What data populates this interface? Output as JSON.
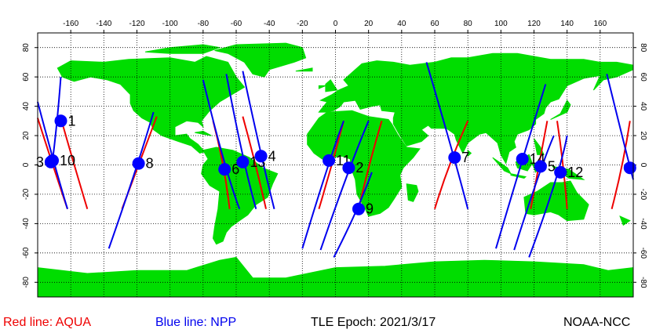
{
  "legend": {
    "aqua": "Red line: AQUA",
    "npp": "Blue line: NPP"
  },
  "epoch": "TLE Epoch: 2021/3/17",
  "credit": "NOAA-NCC",
  "colors": {
    "land": "#00dd00",
    "aqua_track": "#ee0000",
    "npp_track": "#0000ee",
    "marker": "#0000ff",
    "grid": "#000000"
  },
  "map": {
    "lon_ticks": [
      -160,
      -140,
      -120,
      -100,
      -80,
      -60,
      -40,
      -20,
      0,
      20,
      40,
      60,
      80,
      100,
      120,
      140,
      160
    ],
    "lat_ticks": [
      80,
      60,
      40,
      20,
      0,
      -20,
      -40,
      -60,
      -80
    ],
    "lat_labels_left": [
      "80",
      "60",
      "40",
      "20",
      "0",
      "-20",
      "-40",
      "-60",
      "-80"
    ],
    "lat_labels_right": [
      "80",
      "60",
      "40",
      "20",
      "0",
      "-20",
      "-40",
      "-60",
      "-80"
    ]
  },
  "markers": [
    {
      "label": "1",
      "lon": -166,
      "lat": 30
    },
    {
      "label": "3",
      "lon": -172,
      "lat": 2
    },
    {
      "label": "10",
      "lon": -171,
      "lat": 3
    },
    {
      "label": "8",
      "lon": -119,
      "lat": 1
    },
    {
      "label": "6",
      "lon": -67,
      "lat": -3
    },
    {
      "label": "13",
      "lon": -56,
      "lat": 2
    },
    {
      "label": "4",
      "lon": -45,
      "lat": 6
    },
    {
      "label": "11",
      "lon": -4,
      "lat": 3
    },
    {
      "label": "2",
      "lon": 8,
      "lat": -2
    },
    {
      "label": "9",
      "lon": 14,
      "lat": -30
    },
    {
      "label": "7",
      "lon": 72,
      "lat": 5
    },
    {
      "label": "14",
      "lon": 113,
      "lat": 4
    },
    {
      "label": "5",
      "lon": 124,
      "lat": -1
    },
    {
      "label": "12",
      "lon": 136,
      "lat": -5
    },
    {
      "label": "",
      "lon": 178,
      "lat": -2
    }
  ],
  "aqua_tracks": [
    [
      [
        -162,
        -30
      ],
      [
        -171,
        0
      ],
      [
        -180,
        32
      ]
    ],
    [
      [
        -150,
        -30
      ],
      [
        -158,
        0
      ],
      [
        -166,
        32
      ]
    ],
    [
      [
        -129,
        -30
      ],
      [
        -119,
        0
      ],
      [
        -108,
        33
      ]
    ],
    [
      [
        -64,
        -30
      ],
      [
        -67,
        0
      ],
      [
        -74,
        30
      ]
    ],
    [
      [
        -42,
        -30
      ],
      [
        -48,
        0
      ],
      [
        -56,
        33
      ]
    ],
    [
      [
        -10,
        -30
      ],
      [
        -2,
        0
      ],
      [
        5,
        30
      ]
    ],
    [
      [
        14,
        -30
      ],
      [
        20,
        0
      ],
      [
        28,
        30
      ]
    ],
    [
      [
        60,
        -30
      ],
      [
        68,
        0
      ],
      [
        80,
        30
      ]
    ],
    [
      [
        118,
        -30
      ],
      [
        123,
        0
      ],
      [
        128,
        30
      ]
    ],
    [
      [
        140,
        -30
      ],
      [
        138,
        0
      ],
      [
        134,
        30
      ]
    ],
    [
      [
        167,
        -30
      ],
      [
        174,
        0
      ],
      [
        178,
        30
      ]
    ]
  ],
  "npp_tracks": [
    [
      [
        -166,
        60
      ],
      [
        -168,
        30
      ],
      [
        -171,
        3
      ]
    ],
    [
      [
        -180,
        43
      ],
      [
        -170,
        0
      ],
      [
        -162,
        -30
      ]
    ],
    [
      [
        -137,
        -57
      ],
      [
        -119,
        1
      ],
      [
        -110,
        36
      ]
    ],
    [
      [
        -80,
        58
      ],
      [
        -67,
        -3
      ],
      [
        -58,
        -30
      ]
    ],
    [
      [
        -66,
        62
      ],
      [
        -56,
        2
      ],
      [
        -48,
        -30
      ]
    ],
    [
      [
        -56,
        64
      ],
      [
        -45,
        6
      ],
      [
        -37,
        -30
      ]
    ],
    [
      [
        -20,
        -57
      ],
      [
        -4,
        3
      ],
      [
        5,
        30
      ]
    ],
    [
      [
        -9,
        -58
      ],
      [
        8,
        -2
      ],
      [
        20,
        30
      ]
    ],
    [
      [
        -1,
        -63
      ],
      [
        14,
        -30
      ],
      [
        22,
        -5
      ]
    ],
    [
      [
        55,
        70
      ],
      [
        72,
        5
      ],
      [
        80,
        -30
      ]
    ],
    [
      [
        97,
        -57
      ],
      [
        113,
        4
      ],
      [
        127,
        55
      ]
    ],
    [
      [
        108,
        -58
      ],
      [
        124,
        -1
      ],
      [
        132,
        20
      ]
    ],
    [
      [
        117,
        -63
      ],
      [
        136,
        -5
      ],
      [
        140,
        20
      ]
    ],
    [
      [
        164,
        62
      ],
      [
        178,
        -2
      ],
      [
        180,
        -10
      ]
    ]
  ],
  "land": [
    [
      [
        -168,
        66
      ],
      [
        -160,
        71
      ],
      [
        -140,
        70
      ],
      [
        -125,
        72
      ],
      [
        -100,
        73
      ],
      [
        -85,
        70
      ],
      [
        -78,
        74
      ],
      [
        -65,
        70
      ],
      [
        -60,
        60
      ],
      [
        -55,
        53
      ],
      [
        -64,
        47
      ],
      [
        -70,
        43
      ],
      [
        -76,
        37
      ],
      [
        -81,
        30
      ],
      [
        -80,
        26
      ],
      [
        -83,
        29
      ],
      [
        -90,
        30
      ],
      [
        -97,
        26
      ],
      [
        -97,
        20
      ],
      [
        -90,
        21
      ],
      [
        -88,
        18
      ],
      [
        -83,
        14
      ],
      [
        -79,
        9
      ],
      [
        -82,
        8
      ],
      [
        -87,
        13
      ],
      [
        -95,
        16
      ],
      [
        -105,
        20
      ],
      [
        -110,
        24
      ],
      [
        -112,
        29
      ],
      [
        -117,
        32
      ],
      [
        -122,
        37
      ],
      [
        -124,
        42
      ],
      [
        -124,
        48
      ],
      [
        -130,
        55
      ],
      [
        -138,
        58
      ],
      [
        -148,
        60
      ],
      [
        -158,
        57
      ],
      [
        -165,
        60
      ],
      [
        -168,
        66
      ]
    ],
    [
      [
        -80,
        10
      ],
      [
        -72,
        12
      ],
      [
        -62,
        10
      ],
      [
        -52,
        5
      ],
      [
        -44,
        -2
      ],
      [
        -35,
        -6
      ],
      [
        -38,
        -13
      ],
      [
        -41,
        -22
      ],
      [
        -48,
        -27
      ],
      [
        -53,
        -34
      ],
      [
        -58,
        -38
      ],
      [
        -63,
        -42
      ],
      [
        -66,
        -46
      ],
      [
        -68,
        -52
      ],
      [
        -72,
        -54
      ],
      [
        -74,
        -50
      ],
      [
        -73,
        -42
      ],
      [
        -71,
        -30
      ],
      [
        -70,
        -18
      ],
      [
        -76,
        -14
      ],
      [
        -81,
        -6
      ],
      [
        -80,
        0
      ],
      [
        -77,
        4
      ],
      [
        -80,
        10
      ]
    ],
    [
      [
        -73,
        78
      ],
      [
        -60,
        82
      ],
      [
        -30,
        83
      ],
      [
        -20,
        80
      ],
      [
        -18,
        73
      ],
      [
        -25,
        70
      ],
      [
        -40,
        65
      ],
      [
        -43,
        60
      ],
      [
        -50,
        62
      ],
      [
        -55,
        70
      ],
      [
        -65,
        76
      ],
      [
        -73,
        78
      ]
    ],
    [
      [
        -100,
        80
      ],
      [
        -80,
        82
      ],
      [
        -70,
        80
      ],
      [
        -80,
        76
      ],
      [
        -100,
        76
      ],
      [
        -115,
        77
      ],
      [
        -100,
        80
      ]
    ],
    [
      [
        -10,
        36
      ],
      [
        -5,
        43
      ],
      [
        -9,
        44
      ],
      [
        -2,
        48
      ],
      [
        2,
        51
      ],
      [
        8,
        54
      ],
      [
        5,
        58
      ],
      [
        10,
        63
      ],
      [
        16,
        69
      ],
      [
        25,
        71
      ],
      [
        35,
        70
      ],
      [
        45,
        68
      ],
      [
        60,
        70
      ],
      [
        70,
        73
      ],
      [
        80,
        73
      ],
      [
        95,
        76
      ],
      [
        110,
        76
      ],
      [
        130,
        72
      ],
      [
        150,
        72
      ],
      [
        160,
        70
      ],
      [
        170,
        70
      ],
      [
        180,
        68
      ],
      [
        180,
        65
      ],
      [
        170,
        60
      ],
      [
        162,
        58
      ],
      [
        156,
        51
      ],
      [
        160,
        61
      ],
      [
        150,
        59
      ],
      [
        140,
        54
      ],
      [
        135,
        45
      ],
      [
        130,
        43
      ],
      [
        127,
        39
      ],
      [
        126,
        35
      ],
      [
        121,
        31
      ],
      [
        121,
        28
      ],
      [
        117,
        24
      ],
      [
        110,
        21
      ],
      [
        108,
        16
      ],
      [
        109,
        12
      ],
      [
        105,
        9
      ],
      [
        103,
        1
      ],
      [
        100,
        7
      ],
      [
        98,
        15
      ],
      [
        94,
        19
      ],
      [
        91,
        22
      ],
      [
        87,
        21
      ],
      [
        80,
        15
      ],
      [
        77,
        8
      ],
      [
        73,
        17
      ],
      [
        72,
        21
      ],
      [
        67,
        25
      ],
      [
        58,
        25
      ],
      [
        56,
        27
      ],
      [
        52,
        24
      ],
      [
        56,
        20
      ],
      [
        52,
        16
      ],
      [
        43,
        13
      ],
      [
        39,
        20
      ],
      [
        35,
        28
      ],
      [
        35,
        32
      ],
      [
        36,
        36
      ],
      [
        28,
        37
      ],
      [
        27,
        41
      ],
      [
        22,
        40
      ],
      [
        15,
        38
      ],
      [
        12,
        44
      ],
      [
        5,
        43
      ],
      [
        3,
        40
      ],
      [
        -1,
        37
      ],
      [
        -6,
        36
      ],
      [
        -10,
        36
      ]
    ],
    [
      [
        -17,
        21
      ],
      [
        -10,
        32
      ],
      [
        -5,
        36
      ],
      [
        10,
        37
      ],
      [
        20,
        33
      ],
      [
        32,
        31
      ],
      [
        34,
        28
      ],
      [
        38,
        20
      ],
      [
        43,
        12
      ],
      [
        51,
        11
      ],
      [
        47,
        5
      ],
      [
        41,
        -2
      ],
      [
        39,
        -7
      ],
      [
        40,
        -15
      ],
      [
        35,
        -24
      ],
      [
        32,
        -29
      ],
      [
        27,
        -33
      ],
      [
        20,
        -35
      ],
      [
        18,
        -30
      ],
      [
        13,
        -20
      ],
      [
        12,
        -10
      ],
      [
        9,
        -1
      ],
      [
        9,
        4
      ],
      [
        4,
        6
      ],
      [
        -8,
        4
      ],
      [
        -13,
        8
      ],
      [
        -17,
        14
      ],
      [
        -17,
        21
      ]
    ],
    [
      [
        43,
        -13
      ],
      [
        49,
        -14
      ],
      [
        50,
        -18
      ],
      [
        47,
        -25
      ],
      [
        44,
        -24
      ],
      [
        43,
        -13
      ]
    ],
    [
      [
        114,
        -22
      ],
      [
        122,
        -18
      ],
      [
        130,
        -12
      ],
      [
        137,
        -12
      ],
      [
        142,
        -11
      ],
      [
        146,
        -19
      ],
      [
        153,
        -27
      ],
      [
        150,
        -37
      ],
      [
        140,
        -38
      ],
      [
        135,
        -34
      ],
      [
        130,
        -32
      ],
      [
        120,
        -34
      ],
      [
        115,
        -33
      ],
      [
        114,
        -22
      ]
    ],
    [
      [
        95,
        5
      ],
      [
        104,
        -2
      ],
      [
        106,
        -6
      ],
      [
        102,
        -4
      ],
      [
        95,
        5
      ]
    ],
    [
      [
        106,
        -6
      ],
      [
        115,
        -8
      ],
      [
        114,
        -9
      ],
      [
        106,
        -7
      ],
      [
        106,
        -6
      ]
    ],
    [
      [
        109,
        2
      ],
      [
        117,
        7
      ],
      [
        119,
        1
      ],
      [
        116,
        -4
      ],
      [
        110,
        -2
      ],
      [
        109,
        2
      ]
    ],
    [
      [
        119,
        1
      ],
      [
        125,
        1
      ],
      [
        121,
        -5
      ],
      [
        119,
        1
      ]
    ],
    [
      [
        131,
        -1
      ],
      [
        141,
        -3
      ],
      [
        150,
        -10
      ],
      [
        141,
        -9
      ],
      [
        131,
        -1
      ]
    ],
    [
      [
        120,
        18
      ],
      [
        124,
        12
      ],
      [
        126,
        7
      ],
      [
        122,
        7
      ],
      [
        120,
        18
      ]
    ],
    [
      [
        130,
        31
      ],
      [
        140,
        36
      ],
      [
        142,
        41
      ],
      [
        140,
        44
      ],
      [
        136,
        35
      ],
      [
        130,
        31
      ]
    ],
    [
      [
        -6,
        50
      ],
      [
        1,
        51
      ],
      [
        -3,
        58
      ],
      [
        -6,
        55
      ],
      [
        -6,
        50
      ]
    ],
    [
      [
        -10,
        52
      ],
      [
        -6,
        54
      ],
      [
        -10,
        54
      ],
      [
        -10,
        52
      ]
    ],
    [
      [
        -24,
        64
      ],
      [
        -14,
        66
      ],
      [
        -14,
        64
      ],
      [
        -24,
        64
      ]
    ],
    [
      [
        80,
        6
      ],
      [
        82,
        8
      ],
      [
        80,
        10
      ],
      [
        80,
        6
      ]
    ],
    [
      [
        172,
        -35
      ],
      [
        178,
        -38
      ],
      [
        174,
        -41
      ],
      [
        172,
        -35
      ]
    ],
    [
      [
        -85,
        22
      ],
      [
        -75,
        20
      ],
      [
        -80,
        23
      ],
      [
        -85,
        22
      ]
    ],
    [
      [
        -180,
        -70
      ],
      [
        -150,
        -74
      ],
      [
        -120,
        -72
      ],
      [
        -90,
        -72
      ],
      [
        -70,
        -65
      ],
      [
        -60,
        -63
      ],
      [
        -50,
        -77
      ],
      [
        -30,
        -77
      ],
      [
        0,
        -70
      ],
      [
        30,
        -69
      ],
      [
        60,
        -66
      ],
      [
        90,
        -65
      ],
      [
        120,
        -66
      ],
      [
        150,
        -68
      ],
      [
        165,
        -72
      ],
      [
        180,
        -70
      ],
      [
        180,
        -90
      ],
      [
        -180,
        -90
      ],
      [
        -180,
        -70
      ]
    ]
  ]
}
